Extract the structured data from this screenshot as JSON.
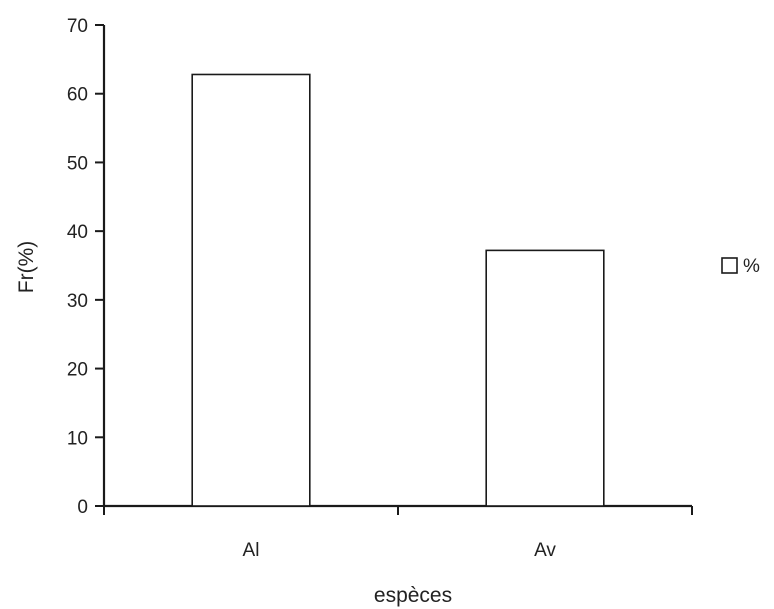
{
  "chart_data": {
    "type": "bar",
    "title": "",
    "xlabel": "espèces",
    "ylabel": "Fr(%)",
    "categories": [
      "Al",
      "Av"
    ],
    "series": [
      {
        "name": "%",
        "values": [
          62.8,
          37.2
        ]
      }
    ],
    "ylim": [
      0,
      70
    ],
    "yticks": [
      0,
      10,
      20,
      30,
      40,
      50,
      60,
      70
    ],
    "grid": false,
    "legend": {
      "position": "right",
      "entries": [
        "%"
      ]
    },
    "colors": {
      "bar_fill": "#ffffff",
      "bar_stroke": "#1a1a1a",
      "axis": "#1a1a1a",
      "text": "#222222"
    }
  }
}
